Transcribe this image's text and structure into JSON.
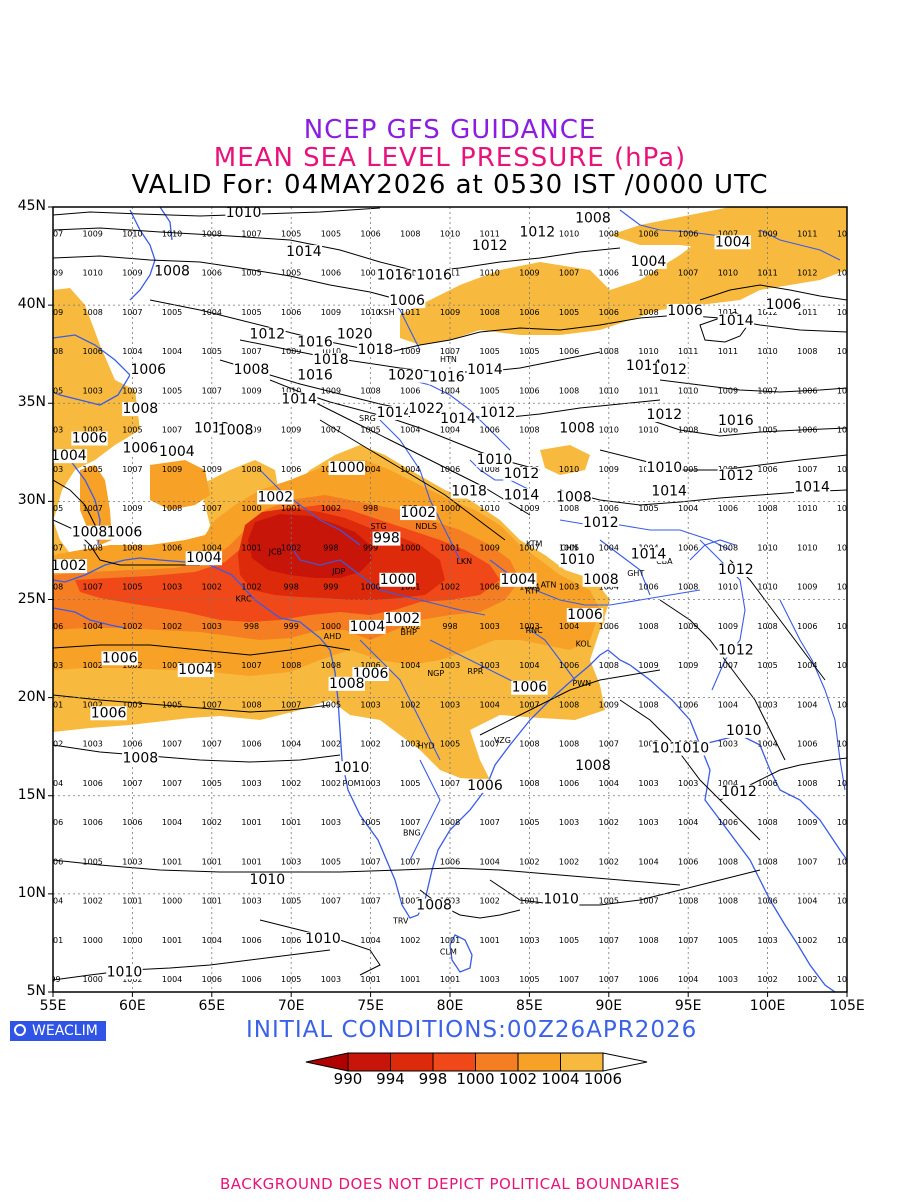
{
  "title": {
    "line1": "NCEP GFS GUIDANCE",
    "line2": "MEAN SEA LEVEL PRESSURE (hPa)",
    "line3": "VALID For: 04MAY2026 at 0530 IST /0000 UTC"
  },
  "lat_labels": [
    "45N",
    "40N",
    "35N",
    "30N",
    "25N",
    "20N",
    "15N",
    "10N",
    "5N"
  ],
  "lon_labels": [
    "55E",
    "60E",
    "65E",
    "70E",
    "75E",
    "80E",
    "85E",
    "90E",
    "95E",
    "100E",
    "105E"
  ],
  "logo": "WEACLIM",
  "initial_conditions": "INITIAL CONDITIONS:00Z26APR2026",
  "legend": {
    "labels": [
      "990",
      "994",
      "998",
      "1000",
      "1002",
      "1004",
      "1006"
    ],
    "colors": [
      "#b00000",
      "#c8150a",
      "#dc2a0a",
      "#f04818",
      "#f57e22",
      "#f7a127",
      "#f7ba3e",
      "#ffffff"
    ]
  },
  "city_codes": [
    "KSH",
    "HTN",
    "SRG",
    "LHR",
    "STG",
    "JCB",
    "NDLS",
    "JDP",
    "LKN",
    "KRC",
    "RTP",
    "BHP",
    "AHD",
    "RNC",
    "KOL",
    "NGP",
    "RPR",
    "PWN",
    "HYD",
    "VZG",
    "POM",
    "BNG",
    "TRV",
    "CLM",
    "CBA",
    "GHT",
    "KTM",
    "CHN",
    "ATN"
  ],
  "contour_labels": [
    {
      "lat": 44.5,
      "lon": 67.0,
      "t": "1010"
    },
    {
      "lat": 42.5,
      "lon": 70.8,
      "t": "1014"
    },
    {
      "lat": 41.5,
      "lon": 62.5,
      "t": "1008"
    },
    {
      "lat": 41.3,
      "lon": 76.5,
      "t": "1016"
    },
    {
      "lat": 41.3,
      "lon": 79.0,
      "t": "1016"
    },
    {
      "lat": 42.8,
      "lon": 82.5,
      "t": "1012"
    },
    {
      "lat": 43.5,
      "lon": 85.5,
      "t": "1012"
    },
    {
      "lat": 44.2,
      "lon": 89.0,
      "t": "1008"
    },
    {
      "lat": 42.0,
      "lon": 92.5,
      "t": "1004"
    },
    {
      "lat": 43.0,
      "lon": 97.8,
      "t": "1004"
    },
    {
      "lat": 40.0,
      "lon": 77.3,
      "t": "1006"
    },
    {
      "lat": 39.5,
      "lon": 94.8,
      "t": "1006"
    },
    {
      "lat": 39.8,
      "lon": 101.0,
      "t": "1006"
    },
    {
      "lat": 39.0,
      "lon": 98.0,
      "t": "1014"
    },
    {
      "lat": 38.3,
      "lon": 68.5,
      "t": "1012"
    },
    {
      "lat": 37.9,
      "lon": 71.5,
      "t": "1016"
    },
    {
      "lat": 38.3,
      "lon": 74.0,
      "t": "1020"
    },
    {
      "lat": 37.5,
      "lon": 75.3,
      "t": "1018"
    },
    {
      "lat": 37.0,
      "lon": 72.5,
      "t": "1018"
    },
    {
      "lat": 36.5,
      "lon": 61.0,
      "t": "1006"
    },
    {
      "lat": 36.5,
      "lon": 67.5,
      "t": "1008"
    },
    {
      "lat": 36.2,
      "lon": 71.5,
      "t": "1016"
    },
    {
      "lat": 36.2,
      "lon": 77.2,
      "t": "1020"
    },
    {
      "lat": 36.1,
      "lon": 79.8,
      "t": "1016"
    },
    {
      "lat": 36.5,
      "lon": 82.2,
      "t": "1014"
    },
    {
      "lat": 36.7,
      "lon": 92.2,
      "t": "1014"
    },
    {
      "lat": 36.5,
      "lon": 93.8,
      "t": "1012"
    },
    {
      "lat": 35.0,
      "lon": 70.5,
      "t": "1014"
    },
    {
      "lat": 34.5,
      "lon": 60.5,
      "t": "1008"
    },
    {
      "lat": 34.3,
      "lon": 76.5,
      "t": "1014"
    },
    {
      "lat": 34.5,
      "lon": 78.5,
      "t": "1022"
    },
    {
      "lat": 34.0,
      "lon": 80.5,
      "t": "1014"
    },
    {
      "lat": 34.3,
      "lon": 83.0,
      "t": "1012"
    },
    {
      "lat": 34.2,
      "lon": 93.5,
      "t": "1012"
    },
    {
      "lat": 33.9,
      "lon": 98.0,
      "t": "1016"
    },
    {
      "lat": 33.5,
      "lon": 65.0,
      "t": "1012"
    },
    {
      "lat": 33.4,
      "lon": 66.5,
      "t": "1008"
    },
    {
      "lat": 33.0,
      "lon": 57.3,
      "t": "1006"
    },
    {
      "lat": 32.5,
      "lon": 60.5,
      "t": "1006"
    },
    {
      "lat": 32.3,
      "lon": 62.8,
      "t": "1004"
    },
    {
      "lat": 32.1,
      "lon": 56.0,
      "t": "1004"
    },
    {
      "lat": 33.5,
      "lon": 88.0,
      "t": "1008"
    },
    {
      "lat": 31.5,
      "lon": 73.5,
      "t": "1000"
    },
    {
      "lat": 31.9,
      "lon": 82.8,
      "t": "1010"
    },
    {
      "lat": 31.5,
      "lon": 93.5,
      "t": "1010"
    },
    {
      "lat": 31.1,
      "lon": 98.0,
      "t": "1012"
    },
    {
      "lat": 31.2,
      "lon": 84.5,
      "t": "1012"
    },
    {
      "lat": 30.3,
      "lon": 81.2,
      "t": "1018"
    },
    {
      "lat": 30.1,
      "lon": 84.5,
      "t": "1014"
    },
    {
      "lat": 30.0,
      "lon": 87.8,
      "t": "1008"
    },
    {
      "lat": 30.3,
      "lon": 93.8,
      "t": "1014"
    },
    {
      "lat": 30.5,
      "lon": 102.8,
      "t": "1014"
    },
    {
      "lat": 30.0,
      "lon": 69.0,
      "t": "1002"
    },
    {
      "lat": 29.2,
      "lon": 78.0,
      "t": "1002"
    },
    {
      "lat": 28.7,
      "lon": 89.5,
      "t": "1012"
    },
    {
      "lat": 28.2,
      "lon": 57.3,
      "t": "1008"
    },
    {
      "lat": 28.2,
      "lon": 59.5,
      "t": "1006"
    },
    {
      "lat": 27.9,
      "lon": 76.0,
      "t": "998"
    },
    {
      "lat": 26.9,
      "lon": 64.5,
      "t": "1004"
    },
    {
      "lat": 26.5,
      "lon": 56.0,
      "t": "1002"
    },
    {
      "lat": 27.1,
      "lon": 92.5,
      "t": "1014"
    },
    {
      "lat": 26.8,
      "lon": 88.0,
      "t": "1010"
    },
    {
      "lat": 26.3,
      "lon": 98.0,
      "t": "1012"
    },
    {
      "lat": 25.8,
      "lon": 76.7,
      "t": "1000"
    },
    {
      "lat": 25.8,
      "lon": 84.3,
      "t": "1004"
    },
    {
      "lat": 25.8,
      "lon": 89.5,
      "t": "1008"
    },
    {
      "lat": 24.0,
      "lon": 88.5,
      "t": "1006"
    },
    {
      "lat": 23.8,
      "lon": 77.0,
      "t": "1002"
    },
    {
      "lat": 23.4,
      "lon": 74.8,
      "t": "1004"
    },
    {
      "lat": 21.8,
      "lon": 59.2,
      "t": "1006"
    },
    {
      "lat": 21.2,
      "lon": 64.0,
      "t": "1004"
    },
    {
      "lat": 21.0,
      "lon": 75.0,
      "t": "1006"
    },
    {
      "lat": 20.5,
      "lon": 73.5,
      "t": "1008"
    },
    {
      "lat": 22.2,
      "lon": 98.0,
      "t": "1012"
    },
    {
      "lat": 20.3,
      "lon": 85.0,
      "t": "1006"
    },
    {
      "lat": 19.0,
      "lon": 58.5,
      "t": "1006"
    },
    {
      "lat": 16.7,
      "lon": 60.5,
      "t": "1008"
    },
    {
      "lat": 17.2,
      "lon": 93.8,
      "t": "1010"
    },
    {
      "lat": 17.2,
      "lon": 95.2,
      "t": "1010"
    },
    {
      "lat": 18.1,
      "lon": 98.5,
      "t": "1010"
    },
    {
      "lat": 16.3,
      "lon": 89.0,
      "t": "1008"
    },
    {
      "lat": 16.2,
      "lon": 73.8,
      "t": "1010"
    },
    {
      "lat": 15.3,
      "lon": 82.2,
      "t": "1006"
    },
    {
      "lat": 15.0,
      "lon": 98.2,
      "t": "1012"
    },
    {
      "lat": 10.5,
      "lon": 68.5,
      "t": "1010"
    },
    {
      "lat": 9.5,
      "lon": 87.0,
      "t": "1010"
    },
    {
      "lat": 9.2,
      "lon": 79.0,
      "t": "1008"
    },
    {
      "lat": 7.5,
      "lon": 72.0,
      "t": "1010"
    },
    {
      "lat": 5.8,
      "lon": 59.5,
      "t": "1010"
    }
  ]
}
